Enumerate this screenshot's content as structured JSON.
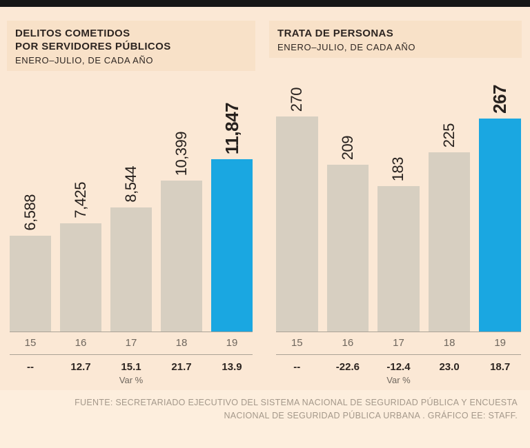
{
  "page": {
    "footer_lines": [
      "FUENTE: SECRETARIADO EJECUTIVO DEL SISTEMA NACIONAL DE SEGURIDAD PÚBLICA Y ENCUESTA",
      "NACIONAL DE SEGURIDAD PÚBLICA URBANA . GRÁFICO EE: STAFF."
    ]
  },
  "colors": {
    "bar": "#d7cfc1",
    "highlight": "#1aa7e1",
    "text_dark": "#2d2521",
    "text_gray": "#6e665d",
    "footer_text": "#a4988a",
    "background": "#fbe8d5",
    "top_bar": "#161616"
  },
  "chart_data": [
    {
      "type": "bar",
      "title": "DELITOS COMETIDOS POR SERVIDORES PÚBLICOS",
      "title_line1": "DELITOS COMETIDOS",
      "title_line2": "POR SERVIDORES PÚBLICOS",
      "subtitle": "ENERO–JULIO, DE CADA AÑO",
      "categories": [
        "15",
        "16",
        "17",
        "18",
        "19"
      ],
      "values": [
        6588,
        7425,
        8544,
        10399,
        11847
      ],
      "value_labels": [
        "6,588",
        "7,425",
        "8,544",
        "10,399",
        "11,847"
      ],
      "var_pct": [
        "--",
        "12.7",
        "15.1",
        "21.7",
        "13.9"
      ],
      "var_label": "Var %",
      "highlight_index": 4,
      "ymax": 11847,
      "ylim": [
        0,
        11847
      ],
      "legend": "none",
      "grid": false
    },
    {
      "type": "bar",
      "title": "TRATA DE PERSONAS",
      "title_line1": "TRATA DE PERSONAS",
      "subtitle": "ENERO–JULIO, DE CADA AÑO",
      "categories": [
        "15",
        "16",
        "17",
        "18",
        "19"
      ],
      "values": [
        270,
        209,
        183,
        225,
        267
      ],
      "value_labels": [
        "270",
        "209",
        "183",
        "225",
        "267"
      ],
      "var_pct": [
        "--",
        "-22.6",
        "-12.4",
        "23.0",
        "18.7"
      ],
      "var_label": "Var %",
      "highlight_index": 4,
      "ymax": 270,
      "ylim": [
        0,
        270
      ],
      "legend": "none",
      "grid": false
    }
  ]
}
